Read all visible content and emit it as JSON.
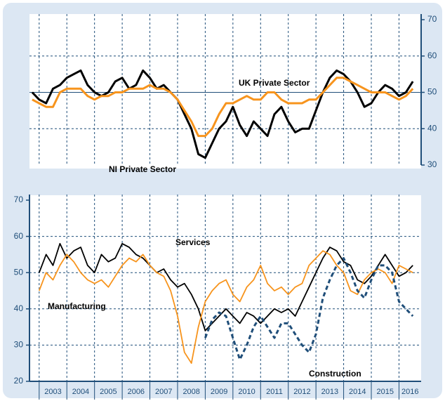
{
  "chart_data": [
    {
      "type": "line",
      "x": [
        2002.75,
        2003,
        2003.25,
        2003.5,
        2003.75,
        2004,
        2004.25,
        2004.5,
        2004.75,
        2005,
        2005.25,
        2005.5,
        2005.75,
        2006,
        2006.25,
        2006.5,
        2006.75,
        2007,
        2007.25,
        2007.5,
        2007.75,
        2008,
        2008.25,
        2008.5,
        2008.75,
        2009,
        2009.25,
        2009.5,
        2009.75,
        2010,
        2010.25,
        2010.5,
        2010.75,
        2011,
        2011.25,
        2011.5,
        2011.75,
        2012,
        2012.25,
        2012.5,
        2012.75,
        2013,
        2013.25,
        2013.5,
        2013.75,
        2014,
        2014.25,
        2014.5,
        2014.75,
        2015,
        2015.25,
        2015.5,
        2015.75,
        2016,
        2016.25,
        2016.5
      ],
      "series": [
        {
          "name": "NI Private Sector",
          "color": "#000000",
          "axis": "y2",
          "values": [
            50,
            48,
            47,
            51,
            52,
            54,
            55,
            56,
            52,
            50,
            49,
            50,
            53,
            54,
            51,
            52,
            56,
            54,
            51,
            52,
            50,
            48,
            44,
            40,
            33,
            32,
            36,
            40,
            42,
            46,
            41,
            38,
            42,
            40,
            38,
            44,
            46,
            42,
            39,
            40,
            40,
            45,
            50,
            54,
            56,
            55,
            53,
            50,
            46,
            47,
            50,
            52,
            51,
            49,
            50,
            53
          ]
        },
        {
          "name": "UK Private Sector",
          "color": "#f7941d",
          "axis": "y2",
          "values": [
            48,
            47,
            46,
            46,
            50,
            51,
            51,
            51,
            49,
            48,
            49,
            49,
            50,
            50,
            51,
            51,
            51,
            52,
            51,
            51,
            50,
            48,
            45,
            42,
            38,
            38,
            40,
            44,
            47,
            47,
            48,
            49,
            48,
            48,
            50,
            50,
            48,
            47,
            47,
            47,
            48,
            48,
            50,
            52,
            54,
            54,
            53,
            52,
            51,
            50,
            50,
            50,
            49,
            48,
            49,
            51
          ]
        }
      ],
      "xlim": [
        2002.65,
        2016.8
      ],
      "xticks": [
        2003,
        2004,
        2005,
        2006,
        2007,
        2008,
        2009,
        2010,
        2011,
        2012,
        2013,
        2014,
        2015,
        2016
      ],
      "y2lim": [
        30,
        70
      ],
      "y2ticks": [
        30,
        40,
        50,
        60,
        70
      ],
      "grid": true
    },
    {
      "type": "line",
      "x": [
        2003,
        2003.25,
        2003.5,
        2003.75,
        2004,
        2004.25,
        2004.5,
        2004.75,
        2005,
        2005.25,
        2005.5,
        2005.75,
        2006,
        2006.25,
        2006.5,
        2006.75,
        2007,
        2007.25,
        2007.5,
        2007.75,
        2008,
        2008.25,
        2008.5,
        2008.75,
        2009,
        2009.25,
        2009.5,
        2009.75,
        2010,
        2010.25,
        2010.5,
        2010.75,
        2011,
        2011.25,
        2011.5,
        2011.75,
        2012,
        2012.25,
        2012.5,
        2012.75,
        2013,
        2013.25,
        2013.5,
        2013.75,
        2014,
        2014.25,
        2014.5,
        2014.75,
        2015,
        2015.25,
        2015.5,
        2015.75,
        2016,
        2016.25,
        2016.5
      ],
      "series": [
        {
          "name": "Services",
          "color": "#000000",
          "values": [
            50,
            55,
            52,
            58,
            54,
            56,
            57,
            52,
            50,
            55,
            53,
            54,
            58,
            57,
            55,
            54,
            52,
            50,
            51,
            48,
            46,
            47,
            44,
            40,
            34,
            36,
            38,
            40,
            38,
            36,
            39,
            38,
            36,
            38,
            40,
            39,
            40,
            38,
            42,
            46,
            50,
            54,
            57,
            56,
            53,
            52,
            48,
            47,
            49,
            52,
            55,
            52,
            49,
            50,
            52
          ]
        },
        {
          "name": "Manufacturing",
          "color": "#f7941d",
          "values": [
            45,
            50,
            48,
            52,
            55,
            53,
            50,
            48,
            47,
            48,
            46,
            49,
            52,
            54,
            53,
            55,
            52,
            50,
            49,
            45,
            38,
            28,
            25,
            35,
            42,
            45,
            47,
            48,
            44,
            42,
            46,
            48,
            52,
            47,
            45,
            46,
            44,
            46,
            47,
            52,
            54,
            56,
            55,
            52,
            50,
            45,
            44,
            48,
            50,
            51,
            50,
            47,
            52,
            51,
            50
          ]
        },
        {
          "name": "Construction",
          "color": "#1f4e79",
          "dashed": true,
          "values": [
            null,
            null,
            null,
            null,
            null,
            null,
            null,
            null,
            null,
            null,
            null,
            null,
            null,
            null,
            null,
            null,
            null,
            null,
            null,
            null,
            null,
            null,
            null,
            null,
            32,
            37,
            39,
            38,
            32,
            26,
            30,
            35,
            38,
            35,
            32,
            36,
            36,
            33,
            30,
            28,
            33,
            43,
            48,
            52,
            54,
            50,
            45,
            43,
            48,
            52,
            52,
            50,
            42,
            40,
            38
          ]
        }
      ],
      "xlim": [
        2002.65,
        2016.8
      ],
      "xticks": [
        2003,
        2004,
        2005,
        2006,
        2007,
        2008,
        2009,
        2010,
        2011,
        2012,
        2013,
        2014,
        2015,
        2016
      ],
      "ylim": [
        20,
        70
      ],
      "yticks": [
        20,
        30,
        40,
        50,
        60,
        70
      ],
      "grid": true
    }
  ]
}
